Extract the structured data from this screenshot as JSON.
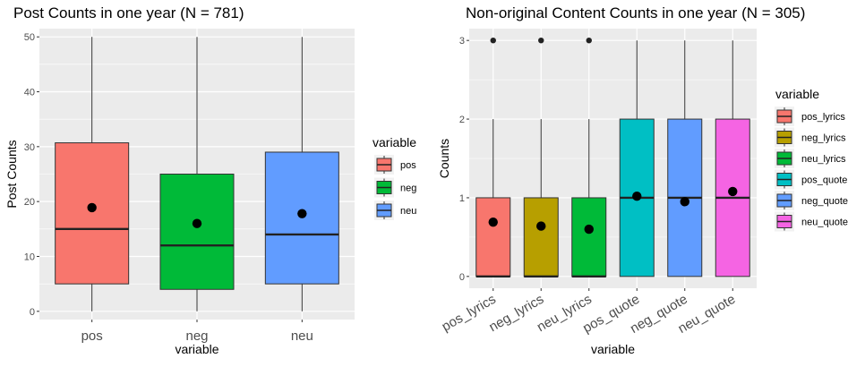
{
  "chart_data": [
    {
      "type": "boxplot",
      "title": "Post Counts in one year (N = 781)",
      "xlabel": "variable",
      "ylabel": "Post Counts",
      "ylim": [
        -1.5,
        51.5
      ],
      "yticks": [
        0,
        10,
        20,
        30,
        40,
        50
      ],
      "legend_title": "variable",
      "legend_position": "right",
      "grid": true,
      "categories": [
        "pos",
        "neg",
        "neu"
      ],
      "series": [
        {
          "name": "pos",
          "color": "#F8766D",
          "min": 0,
          "q1": 5,
          "median": 15,
          "q3": 30.7,
          "max": 50,
          "mean": 18.9,
          "outliers": []
        },
        {
          "name": "neg",
          "color": "#00BA38",
          "min": 0,
          "q1": 4,
          "median": 12,
          "q3": 25,
          "max": 50,
          "mean": 16.0,
          "outliers": []
        },
        {
          "name": "neu",
          "color": "#619CFF",
          "min": 0,
          "q1": 5,
          "median": 14,
          "q3": 29,
          "max": 50,
          "mean": 17.8,
          "outliers": []
        }
      ]
    },
    {
      "type": "boxplot",
      "title": "Non-original Content Counts in one year (N = 305)",
      "xlabel": "variable",
      "ylabel": "Counts",
      "ylim": [
        -0.15,
        3.15
      ],
      "yticks": [
        0,
        1,
        2,
        3
      ],
      "legend_title": "variable",
      "legend_position": "right",
      "grid": true,
      "categories": [
        "pos_lyrics",
        "neg_lyrics",
        "neu_lyrics",
        "pos_quote",
        "neg_quote",
        "neu_quote"
      ],
      "series": [
        {
          "name": "pos_lyrics",
          "color": "#F8766D",
          "min": 0,
          "q1": 0,
          "median": 0,
          "q3": 1,
          "max": 2,
          "mean": 0.69,
          "outliers": [
            3
          ]
        },
        {
          "name": "neg_lyrics",
          "color": "#B79F00",
          "min": 0,
          "q1": 0,
          "median": 0,
          "q3": 1,
          "max": 2,
          "mean": 0.64,
          "outliers": [
            3
          ]
        },
        {
          "name": "neu_lyrics",
          "color": "#00BA38",
          "min": 0,
          "q1": 0,
          "median": 0,
          "q3": 1,
          "max": 2,
          "mean": 0.6,
          "outliers": [
            3
          ]
        },
        {
          "name": "pos_quote",
          "color": "#00BFC4",
          "min": 0,
          "q1": 0,
          "median": 1,
          "q3": 2,
          "max": 3,
          "mean": 1.02,
          "outliers": []
        },
        {
          "name": "neg_quote",
          "color": "#619CFF",
          "min": 0,
          "q1": 0,
          "median": 1,
          "q3": 2,
          "max": 3,
          "mean": 0.95,
          "outliers": []
        },
        {
          "name": "neu_quote",
          "color": "#F564E3",
          "min": 0,
          "q1": 0,
          "median": 1,
          "q3": 2,
          "max": 3,
          "mean": 1.08,
          "outliers": []
        }
      ]
    }
  ]
}
